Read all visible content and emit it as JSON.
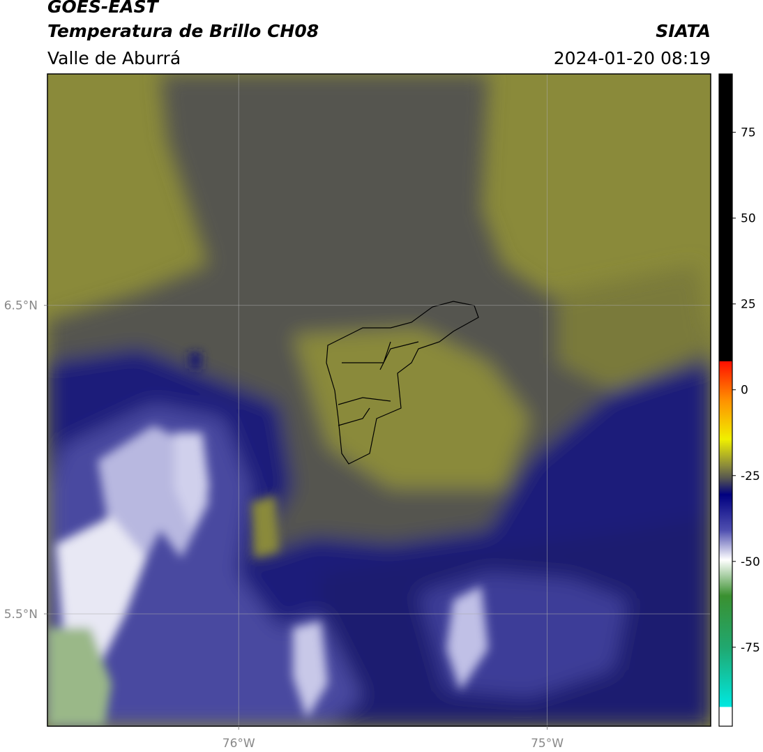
{
  "header": {
    "title": "GOES-EAST",
    "subtitle": "Temperatura de Brillo CH08",
    "region": "Valle de Aburrá",
    "source": "SIATA",
    "datetime": "2024-01-20 08:19"
  },
  "map": {
    "xlim": [
      -76.62,
      -74.47
    ],
    "ylim": [
      5.136,
      7.25
    ],
    "xticks": [
      {
        "value": -76,
        "label": "76°W"
      },
      {
        "value": -75,
        "label": "75°W"
      }
    ],
    "yticks": [
      {
        "value": 6.5,
        "label": "6.5°N"
      },
      {
        "value": 5.5,
        "label": "5.5°N"
      }
    ],
    "grid": true
  },
  "colorbar": {
    "ylim": [
      -98,
      92
    ],
    "yticks": [
      75,
      50,
      25,
      0,
      -25,
      -50,
      -75
    ]
  }
}
